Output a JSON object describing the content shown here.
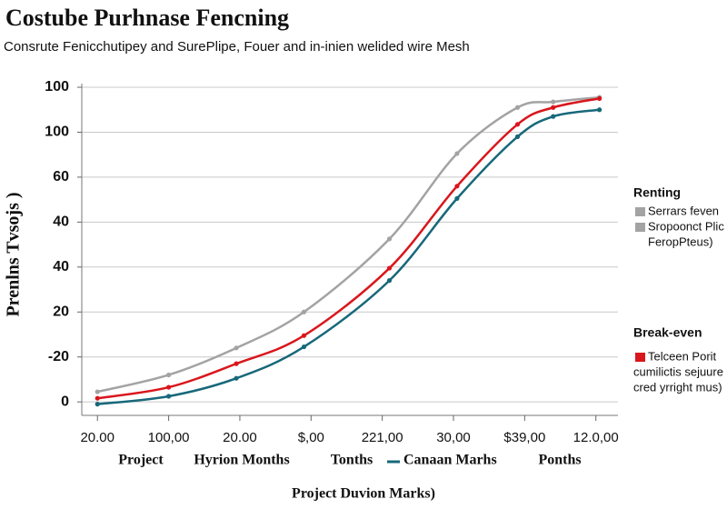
{
  "chart_data": {
    "type": "line",
    "title": "Costube Purhnase Fencning",
    "subtitle": "Consrute Fenicchutipey and SurePlipe, Fouer and in-inien welided wire Mesh",
    "y_label": "Prenlns Tvsojs )",
    "x_label": "Project Duvion Marks)",
    "x": [
      0,
      1,
      1.95,
      2.9,
      4.1,
      5.05,
      5.9,
      6.4,
      7.05
    ],
    "xlim": [
      -0.22,
      7.31
    ],
    "xticks": [
      {
        "value": 0,
        "label": "20.00"
      },
      {
        "value": 1,
        "label": "100,00"
      },
      {
        "value": 2,
        "label": "20.00"
      },
      {
        "value": 3,
        "label": "$,00"
      },
      {
        "value": 4,
        "label": "221,00"
      },
      {
        "value": 5,
        "label": "30,00"
      },
      {
        "value": 6,
        "label": "$39,00"
      },
      {
        "value": 7,
        "label": "12.0,00"
      }
    ],
    "ylim": [
      -6,
      140
    ],
    "yticks": [
      0,
      {
        "value": 20,
        "label": "-20"
      },
      {
        "value": 40,
        "label": "20"
      },
      {
        "value": 60,
        "label": "40"
      },
      {
        "value": 80,
        "label": "40"
      },
      {
        "value": 100,
        "label": "60"
      },
      {
        "value": 120,
        "label": "100"
      },
      {
        "value": 140,
        "label": "100"
      }
    ],
    "grid": true,
    "series": [
      {
        "color": "#a3a3a3",
        "values": [
          4.5,
          12,
          24,
          40,
          72.5,
          110.5,
          131,
          133.5,
          135.5
        ]
      },
      {
        "color": "#d9161c",
        "values": [
          1.6,
          6.5,
          17,
          29.5,
          59.5,
          96,
          123.5,
          131,
          135
        ]
      },
      {
        "name": "Canaan Marhs",
        "color": "#17687a",
        "values": [
          -1,
          2.5,
          10.5,
          24.5,
          54,
          90.5,
          118,
          127,
          130
        ]
      }
    ],
    "bottom_row_before": [
      "Project",
      "Hyrion Months",
      "Tonths"
    ],
    "bottom_row_after": [
      "Ponths"
    ],
    "legend": [
      {
        "title": "Renting",
        "items": [
          {
            "color": "#a3a3a3",
            "lines": [
              "Serrars feven"
            ]
          },
          {
            "color": "#a3a3a3",
            "lines": [
              "Sropoonct Plic",
              "FeropPteus)"
            ]
          }
        ]
      },
      {
        "title": "Break-even",
        "items": [
          {
            "color": "#d9161c",
            "lines": [
              "Telceen Porit",
              "cumilictis sejuure",
              "cred yrright mus)"
            ]
          }
        ]
      }
    ]
  }
}
